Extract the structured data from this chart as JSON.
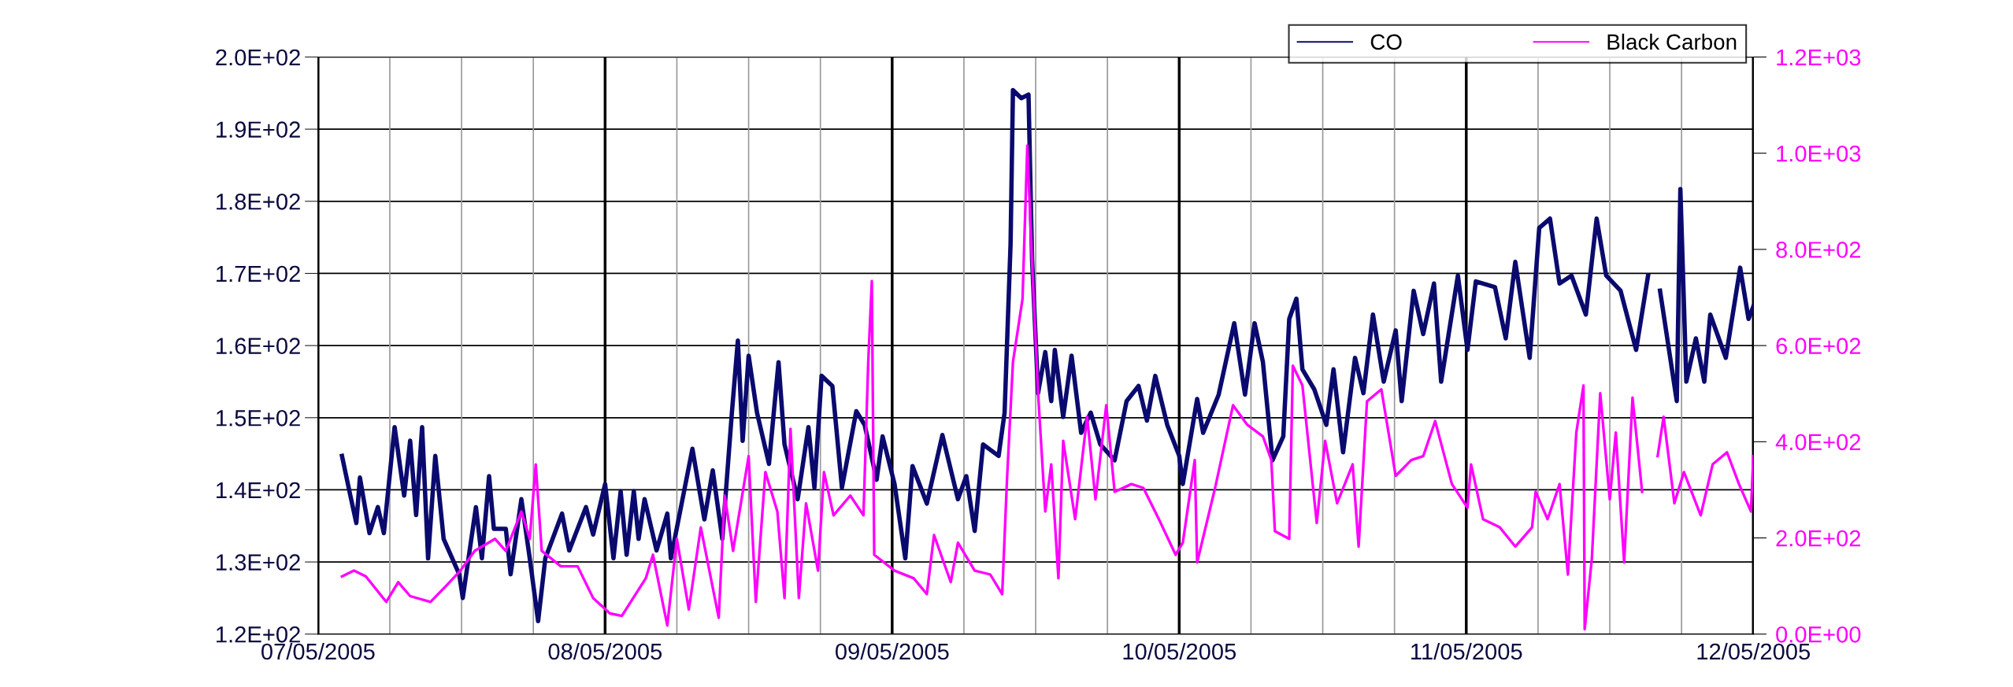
{
  "chart_data": {
    "type": "line",
    "xlim": [
      "2005-05-07",
      "2005-05-12"
    ],
    "xticks": [
      {
        "value": "2005-05-07",
        "label": "07/05/2005"
      },
      {
        "value": "2005-05-07T06:00",
        "label": null
      },
      {
        "value": "2005-05-07T12:00",
        "label": null
      },
      {
        "value": "2005-05-07T18:00",
        "label": null
      },
      {
        "value": "2005-05-08",
        "label": "08/05/2005"
      },
      {
        "value": "2005-05-08T06:00",
        "label": null
      },
      {
        "value": "2005-05-08T12:00",
        "label": null
      },
      {
        "value": "2005-05-08T18:00",
        "label": null
      },
      {
        "value": "2005-05-09",
        "label": "09/05/2005"
      },
      {
        "value": "2005-05-09T06:00",
        "label": null
      },
      {
        "value": "2005-05-09T12:00",
        "label": null
      },
      {
        "value": "2005-05-09T18:00",
        "label": null
      },
      {
        "value": "2005-05-10",
        "label": "10/05/2005"
      },
      {
        "value": "2005-05-10T06:00",
        "label": null
      },
      {
        "value": "2005-05-10T12:00",
        "label": null
      },
      {
        "value": "2005-05-10T18:00",
        "label": null
      },
      {
        "value": "2005-05-11",
        "label": "11/05/2005"
      },
      {
        "value": "2005-05-11T06:00",
        "label": null
      },
      {
        "value": "2005-05-11T12:00",
        "label": null
      },
      {
        "value": "2005-05-11T18:00",
        "label": null
      },
      {
        "value": "2005-05-12",
        "label": "12/05/2005"
      }
    ],
    "ylim": [
      120,
      200
    ],
    "yticks": [
      {
        "value": 120,
        "label": "1.2E+02"
      },
      {
        "value": 130,
        "label": "1.3E+02"
      },
      {
        "value": 140,
        "label": "1.4E+02"
      },
      {
        "value": 150,
        "label": "1.5E+02"
      },
      {
        "value": 160,
        "label": "1.6E+02"
      },
      {
        "value": 170,
        "label": "1.7E+02"
      },
      {
        "value": 180,
        "label": "1.8E+02"
      },
      {
        "value": 190,
        "label": "1.9E+02"
      },
      {
        "value": 200,
        "label": "2.0E+02"
      }
    ],
    "y2lim": [
      0,
      1200
    ],
    "y2ticks": [
      {
        "value": 0,
        "label": "0.0E+00"
      },
      {
        "value": 200,
        "label": "2.0E+02"
      },
      {
        "value": 400,
        "label": "4.0E+02"
      },
      {
        "value": 600,
        "label": "6.0E+02"
      },
      {
        "value": 800,
        "label": "8.0E+02"
      },
      {
        "value": 1000,
        "label": "1.0E+03"
      },
      {
        "value": 1200,
        "label": "1.2E+03"
      }
    ],
    "grid": true,
    "legend": "top right",
    "marker": "none",
    "line_style": "solid",
    "series": [
      {
        "name": "CO",
        "color": "#0a0a6e",
        "x": [
          "2005-05-07T02:00",
          "2005-05-07T02:42",
          "2005-05-07T03:12",
          "2005-05-07T03:30",
          "2005-05-07T04:18",
          "2005-05-07T05:00",
          "2005-05-07T05:30",
          "2005-05-07T06:24",
          "2005-05-07T07:12",
          "2005-05-07T07:42",
          "2005-05-07T08:12",
          "2005-05-07T08:42",
          "2005-05-07T09:12",
          "2005-05-07T09:48",
          "2005-05-07T10:30",
          "2005-05-07T11:48",
          "2005-05-07T12:06",
          "2005-05-07T13:12",
          "2005-05-07T13:42",
          "2005-05-07T14:18",
          "2005-05-07T14:42",
          "2005-05-07T15:42",
          "2005-05-07T16:06",
          "2005-05-07T17:00",
          "2005-05-07T17:42",
          "2005-05-07T18:24",
          "2005-05-07T19:00",
          "2005-05-07T20:24",
          "2005-05-07T21:00",
          "2005-05-07T22:24",
          "2005-05-07T23:00",
          "2005-05-08T00:00",
          "2005-05-08T00:42",
          "2005-05-08T01:18",
          "2005-05-08T01:48",
          "2005-05-08T02:24",
          "2005-05-08T02:48",
          "2005-05-08T03:18",
          "2005-05-08T04:18",
          "2005-05-08T05:12",
          "2005-05-08T05:30",
          "2005-05-08T07:18",
          "2005-05-08T08:18",
          "2005-05-08T09:00",
          "2005-05-08T09:48",
          "2005-05-08T10:36",
          "2005-05-08T11:06",
          "2005-05-08T11:30",
          "2005-05-08T12:00",
          "2005-05-08T12:42",
          "2005-05-08T13:42",
          "2005-05-08T14:30",
          "2005-05-08T15:00",
          "2005-05-08T16:06",
          "2005-05-08T17:00",
          "2005-05-08T17:30",
          "2005-05-08T18:06",
          "2005-05-08T19:00",
          "2005-05-08T19:48",
          "2005-05-08T21:00",
          "2005-05-08T21:42",
          "2005-05-08T22:42",
          "2005-05-08T23:12",
          "2005-05-09T00:12",
          "2005-05-09T01:06",
          "2005-05-09T01:42",
          "2005-05-09T02:54",
          "2005-05-09T04:12",
          "2005-05-09T05:30",
          "2005-05-09T06:12",
          "2005-05-09T06:54",
          "2005-05-09T07:36",
          "2005-05-09T08:54",
          "2005-05-09T09:24",
          "2005-05-09T09:54",
          "2005-05-09T10:06",
          "2005-05-09T10:48",
          "2005-05-09T11:24",
          "2005-05-09T11:42",
          "2005-05-09T12:12",
          "2005-05-09T12:48",
          "2005-05-09T13:18",
          "2005-05-09T13:36",
          "2005-05-09T14:18",
          "2005-05-09T15:00",
          "2005-05-09T15:48",
          "2005-05-09T16:36",
          "2005-05-09T17:24",
          "2005-05-09T18:36",
          "2005-05-09T19:36",
          "2005-05-09T20:36",
          "2005-05-09T21:18",
          "2005-05-09T22:00",
          "2005-05-09T23:00",
          "2005-05-10T00:00",
          "2005-05-10T00:18",
          "2005-05-10T01:30",
          "2005-05-10T02:00",
          "2005-05-10T03:18",
          "2005-05-10T04:36",
          "2005-05-10T05:30",
          "2005-05-10T06:18",
          "2005-05-10T07:00",
          "2005-05-10T07:48",
          "2005-05-10T08:42",
          "2005-05-10T09:12",
          "2005-05-10T09:48",
          "2005-05-10T10:18",
          "2005-05-10T11:18",
          "2005-05-10T12:18",
          "2005-05-10T12:54",
          "2005-05-10T13:42",
          "2005-05-10T14:42",
          "2005-05-10T15:24",
          "2005-05-10T16:12",
          "2005-05-10T17:06",
          "2005-05-10T18:06",
          "2005-05-10T18:36",
          "2005-05-10T19:36",
          "2005-05-10T20:24",
          "2005-05-10T21:18",
          "2005-05-10T21:54",
          "2005-05-10T23:18",
          "2005-05-11T00:06",
          "2005-05-11T00:48",
          "2005-05-11T02:24",
          "2005-05-11T03:18",
          "2005-05-11T04:06",
          "2005-05-11T05:18",
          "2005-05-11T06:06",
          "2005-05-11T07:00",
          "2005-05-11T07:48",
          "2005-05-11T08:48",
          "2005-05-11T10:00",
          "2005-05-11T10:54",
          "2005-05-11T11:42",
          "2005-05-11T12:54",
          "2005-05-11T14:12",
          "2005-05-11T15:12",
          "2005-05-11T15:42",
          "2005-05-11T16:12",
          "2005-05-11T17:36",
          "2005-05-11T17:54",
          "2005-05-11T18:24",
          "2005-05-11T19:12",
          "2005-05-11T19:54",
          "2005-05-11T20:24",
          "2005-05-11T21:42",
          "2005-05-11T22:54",
          "2005-05-11T23:36",
          "2005-05-12T00:00"
        ],
        "values": [
          144.7,
          139.2,
          135.4,
          141.7,
          134,
          137.6,
          134,
          148.7,
          139.2,
          146.8,
          136.5,
          148.7,
          130.5,
          144.7,
          133.2,
          128.3,
          125,
          137.6,
          130.5,
          141.9,
          134.6,
          134.6,
          128.3,
          138.7,
          130.5,
          121.8,
          130.5,
          136.7,
          131.6,
          137.6,
          133.8,
          140.8,
          130.5,
          139.8,
          131,
          139.8,
          133.2,
          138.7,
          131.6,
          136.7,
          130.5,
          145.7,
          135.9,
          142.7,
          133.2,
          150.7,
          160.7,
          146.8,
          158.6,
          150.7,
          143.6,
          157.7,
          146.3,
          138.7,
          148.7,
          140.3,
          155.8,
          154.4,
          140.3,
          150.9,
          149,
          141.4,
          147.4,
          140.8,
          130.5,
          143.3,
          138.1,
          147.6,
          138.7,
          141.9,
          134.3,
          146.3,
          144.7,
          150.7,
          174.1,
          195.4,
          194.3,
          194.8,
          171.9,
          153.4,
          159.1,
          152.3,
          159.4,
          150.1,
          158.6,
          147.9,
          150.7,
          146.3,
          144.1,
          152.3,
          154.4,
          149.6,
          155.8,
          149,
          144.7,
          140.8,
          152.6,
          147.9,
          153.2,
          163.1,
          153.2,
          163.1,
          157.7,
          144.1,
          147.4,
          163.7,
          166.5,
          156.7,
          153.9,
          149,
          156.7,
          145.2,
          158.3,
          153.4,
          164.3,
          155,
          162.1,
          152.3,
          167.6,
          161.6,
          168.6,
          155,
          169.7,
          159.4,
          168.9,
          168.1,
          161,
          171.6,
          158.3,
          176.3,
          177.6,
          168.6,
          169.7,
          164.3,
          177.6,
          169.7,
          167.6,
          159.4,
          169.7,
          null,
          167.6,
          152.3,
          181.7,
          155,
          161,
          155,
          164.3,
          158.3,
          170.8,
          163.7,
          165.4
        ]
      },
      {
        "name": "Black Carbon",
        "color": "#ff00ff",
        "axis": "y2",
        "x": [
          "2005-05-07T02:00",
          "2005-05-07T03:00",
          "2005-05-07T04:00",
          "2005-05-07T05:42",
          "2005-05-07T06:42",
          "2005-05-07T07:42",
          "2005-05-07T09:24",
          "2005-05-07T10:42",
          "2005-05-07T11:54",
          "2005-05-07T13:06",
          "2005-05-07T14:48",
          "2005-05-07T15:42",
          "2005-05-07T17:00",
          "2005-05-07T17:42",
          "2005-05-07T18:12",
          "2005-05-07T18:42",
          "2005-05-07T20:18",
          "2005-05-07T21:42",
          "2005-05-07T23:00",
          "2005-05-08T00:24",
          "2005-05-08T01:24",
          "2005-05-08T03:24",
          "2005-05-08T04:00",
          "2005-05-08T05:12",
          "2005-05-08T06:00",
          "2005-05-08T07:00",
          "2005-05-08T08:00",
          "2005-05-08T09:30",
          "2005-05-08T10:00",
          "2005-05-08T10:42",
          "2005-05-08T12:00",
          "2005-05-08T12:36",
          "2005-05-08T13:24",
          "2005-05-08T14:24",
          "2005-05-08T15:00",
          "2005-05-08T15:30",
          "2005-05-08T16:12",
          "2005-05-08T16:48",
          "2005-05-08T17:48",
          "2005-05-08T18:18",
          "2005-05-08T19:06",
          "2005-05-08T20:30",
          "2005-05-08T21:36",
          "2005-05-08T22:00",
          "2005-05-08T22:18",
          "2005-05-08T22:30",
          "2005-05-09T00:12",
          "2005-05-09T01:48",
          "2005-05-09T02:54",
          "2005-05-09T03:30",
          "2005-05-09T04:54",
          "2005-05-09T05:30",
          "2005-05-09T06:54",
          "2005-05-09T08:12",
          "2005-05-09T09:12",
          "2005-05-09T09:36",
          "2005-05-09T10:06",
          "2005-05-09T10:54",
          "2005-05-09T11:18",
          "2005-05-09T11:42",
          "2005-05-09T12:12",
          "2005-05-09T12:48",
          "2005-05-09T13:18",
          "2005-05-09T13:54",
          "2005-05-09T14:18",
          "2005-05-09T15:18",
          "2005-05-09T16:18",
          "2005-05-09T17:00",
          "2005-05-09T17:54",
          "2005-05-09T18:36",
          "2005-05-09T20:00",
          "2005-05-09T21:00",
          "2005-05-09T22:18",
          "2005-05-09T23:42",
          "2005-05-10T00:18",
          "2005-05-10T01:18",
          "2005-05-10T01:30",
          "2005-05-10T03:00",
          "2005-05-10T04:30",
          "2005-05-10T05:42",
          "2005-05-10T07:00",
          "2005-05-10T07:42",
          "2005-05-10T08:00",
          "2005-05-10T09:12",
          "2005-05-10T09:30",
          "2005-05-10T10:18",
          "2005-05-10T11:30",
          "2005-05-10T12:12",
          "2005-05-10T13:12",
          "2005-05-10T14:30",
          "2005-05-10T15:00",
          "2005-05-10T15:42",
          "2005-05-10T16:54",
          "2005-05-10T18:06",
          "2005-05-10T19:24",
          "2005-05-10T20:24",
          "2005-05-10T21:24",
          "2005-05-10T22:48",
          "2005-05-11T00:06",
          "2005-05-11T00:24",
          "2005-05-11T01:24",
          "2005-05-11T02:48",
          "2005-05-11T04:06",
          "2005-05-11T05:30",
          "2005-05-11T05:48",
          "2005-05-11T06:48",
          "2005-05-11T07:48",
          "2005-05-11T08:30",
          "2005-05-11T09:12",
          "2005-05-11T09:48",
          "2005-05-11T09:54",
          "2005-05-11T10:30",
          "2005-05-11T11:12",
          "2005-05-11T12:00",
          "2005-05-11T12:30",
          "2005-05-11T13:12",
          "2005-05-11T13:54",
          "2005-05-11T14:42",
          "2005-05-11T15:18",
          "2005-05-11T16:00",
          "2005-05-11T16:30",
          "2005-05-11T17:24",
          "2005-05-11T18:12",
          "2005-05-11T19:36",
          "2005-05-11T20:36",
          "2005-05-11T21:48",
          "2005-05-11T22:48",
          "2005-05-11T23:48",
          "2005-05-12T00:00"
        ],
        "values": [
          120,
          132,
          120,
          67,
          108,
          79,
          67,
          100,
          132,
          173,
          198,
          173,
          255,
          198,
          353,
          173,
          141,
          141,
          75,
          43,
          38,
          116,
          165,
          18,
          198,
          51,
          222,
          34,
          288,
          173,
          370,
          67,
          337,
          255,
          75,
          427,
          75,
          272,
          132,
          337,
          247,
          288,
          247,
          566,
          734,
          165,
          132,
          116,
          83,
          206,
          108,
          190,
          132,
          124,
          83,
          321,
          566,
          697,
          1016,
          771,
          501,
          255,
          353,
          116,
          402,
          239,
          452,
          280,
          476,
          296,
          312,
          304,
          239,
          165,
          190,
          362,
          149,
          304,
          476,
          435,
          411,
          362,
          214,
          198,
          558,
          517,
          231,
          402,
          272,
          353,
          182,
          484,
          509,
          329,
          362,
          370,
          443,
          312,
          263,
          353,
          239,
          222,
          182,
          222,
          296,
          239,
          312,
          124,
          419,
          517,
          10,
          157,
          501,
          280,
          419,
          149,
          492,
          296,
          null,
          370,
          452,
          272,
          337,
          247,
          353,
          378,
          312,
          255,
          370
        ]
      }
    ]
  }
}
